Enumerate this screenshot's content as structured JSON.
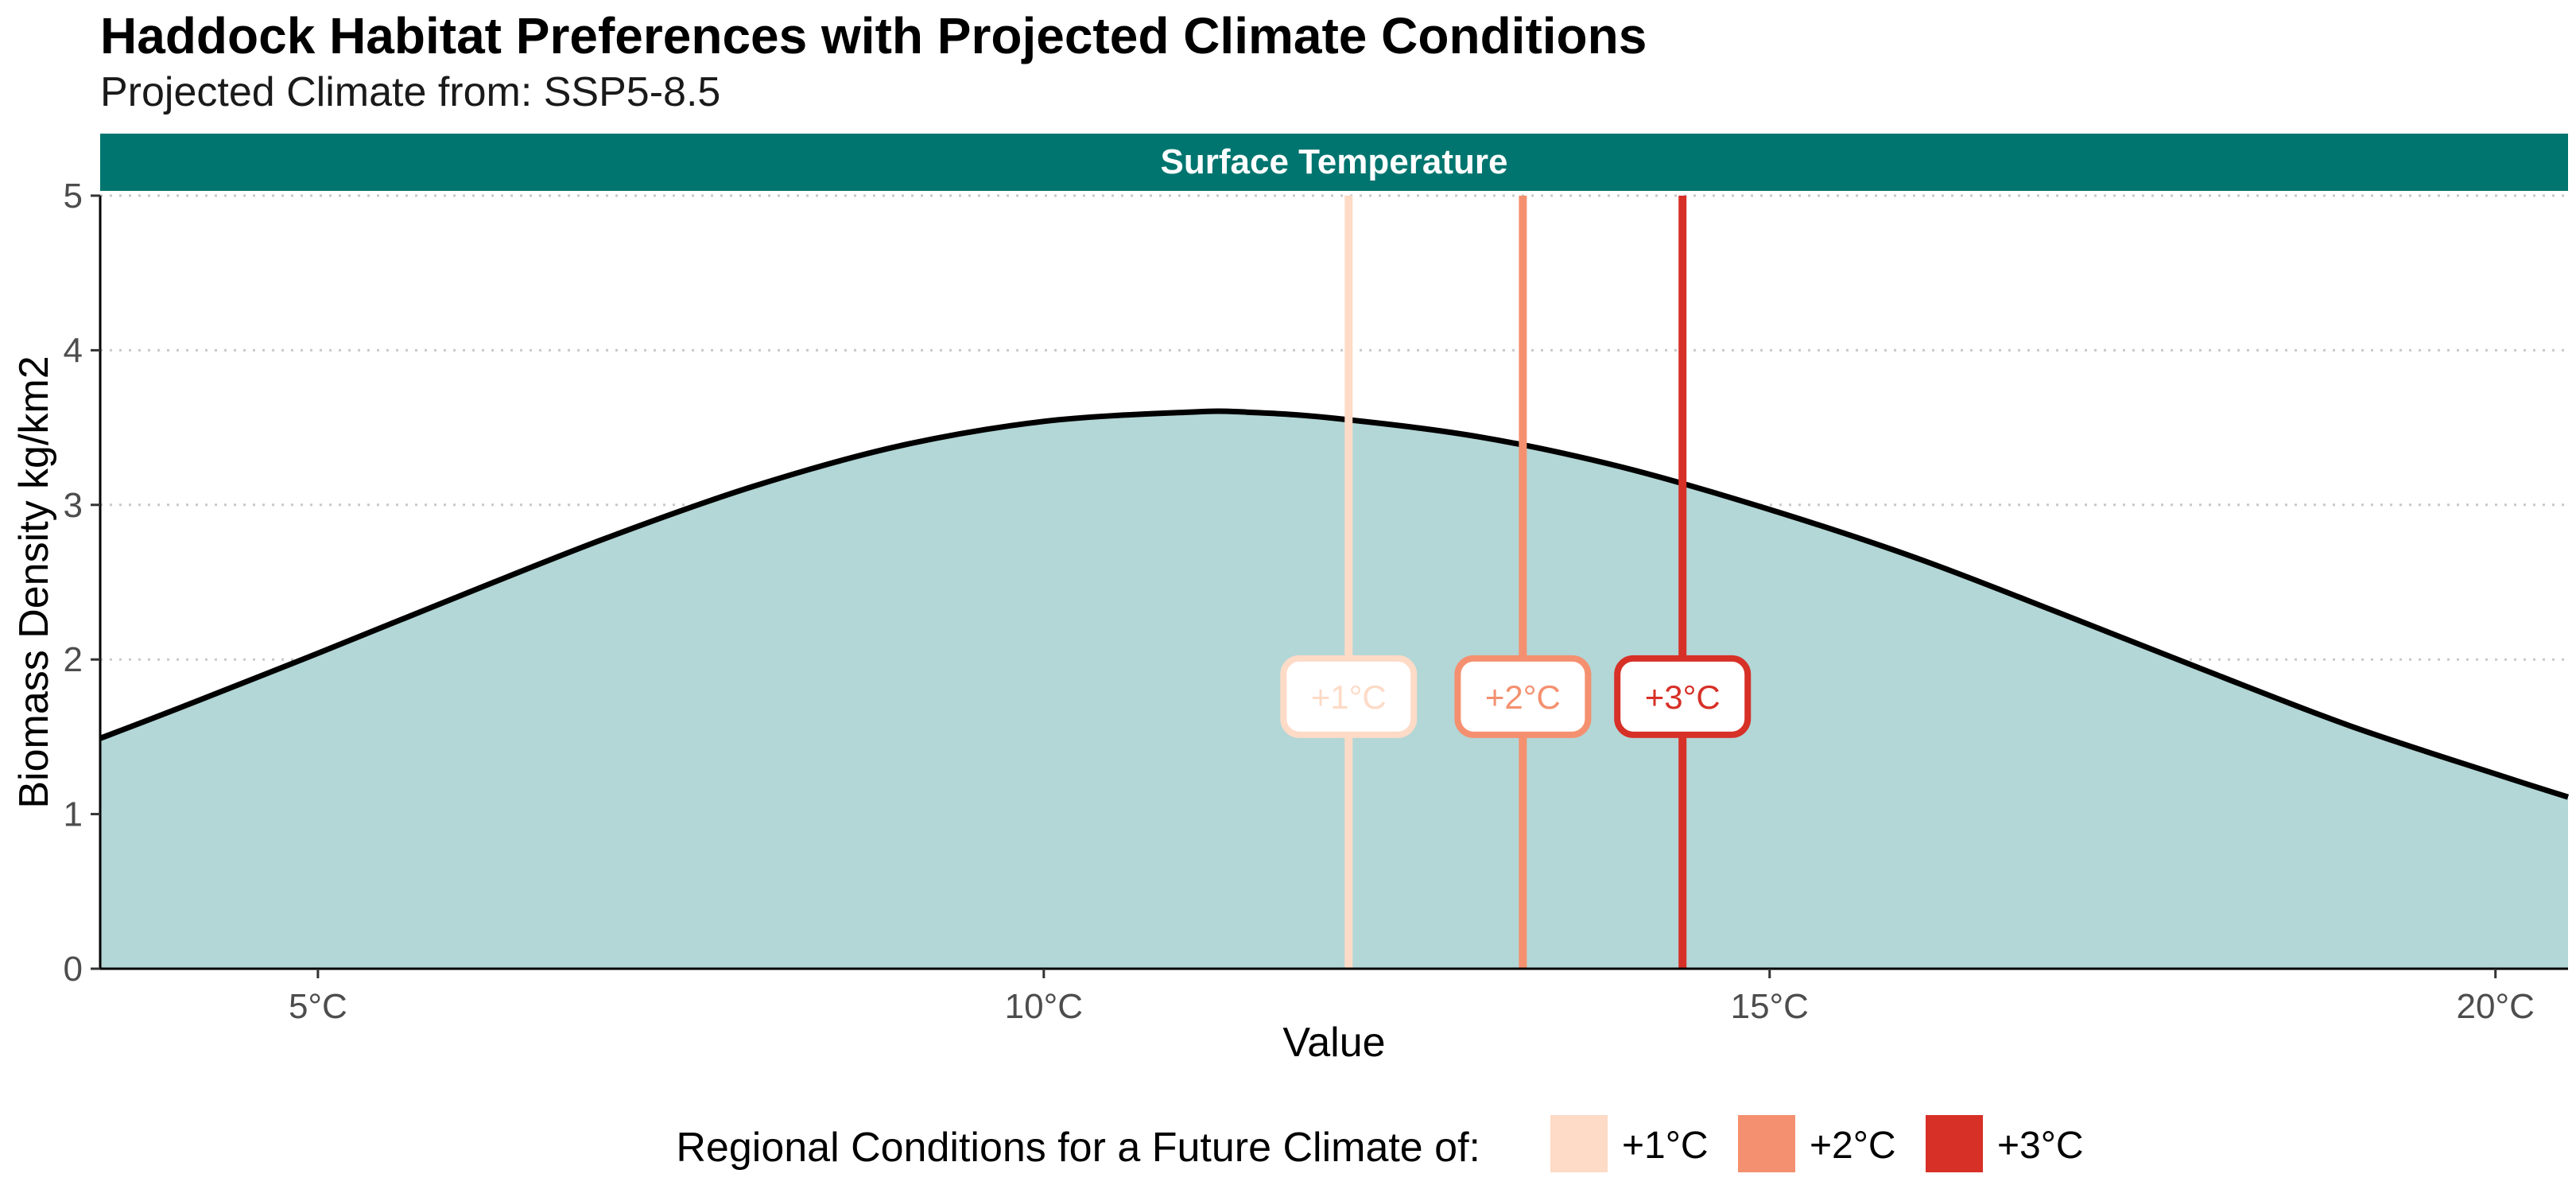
{
  "title": "Haddock Habitat Preferences with Projected Climate Conditions",
  "subtitle": "Projected Climate from: SSP5-8.5",
  "chart_data": {
    "type": "area",
    "panel_label": "Surface Temperature",
    "xlabel": "Value",
    "ylabel": "Biomass Density kg/km2",
    "xlim": [
      3.5,
      20.5
    ],
    "ylim": [
      0,
      5
    ],
    "x_ticks": [
      {
        "value": 5,
        "label": "5°C"
      },
      {
        "value": 10,
        "label": "10°C"
      },
      {
        "value": 15,
        "label": "15°C"
      },
      {
        "value": 20,
        "label": "20°C"
      }
    ],
    "y_ticks": [
      {
        "value": 0,
        "label": "0"
      },
      {
        "value": 1,
        "label": "1"
      },
      {
        "value": 2,
        "label": "2"
      },
      {
        "value": 3,
        "label": "3"
      },
      {
        "value": 4,
        "label": "4"
      },
      {
        "value": 5,
        "label": "5"
      }
    ],
    "grid": "horizontal dotted",
    "series": [
      {
        "x": [
          3.5,
          4.0,
          5.0,
          6.0,
          7.0,
          8.0,
          9.0,
          10.0,
          11.0,
          11.4,
          12.0,
          13.0,
          14.0,
          15.0,
          16.0,
          17.0,
          18.0,
          19.0,
          20.0,
          20.5
        ],
        "y": [
          1.49,
          1.67,
          2.04,
          2.42,
          2.79,
          3.12,
          3.38,
          3.54,
          3.6,
          3.6,
          3.56,
          3.44,
          3.24,
          2.97,
          2.66,
          2.3,
          1.93,
          1.57,
          1.26,
          1.11
        ]
      }
    ],
    "vlines": [
      {
        "x": 12.1,
        "label": "+1°C",
        "color": "#fddbc7"
      },
      {
        "x": 13.3,
        "label": "+2°C",
        "color": "#f4906f"
      },
      {
        "x": 14.4,
        "label": "+3°C",
        "color": "#d73027"
      }
    ],
    "vline_label_y": 1.76,
    "fill_color": "#b3d6d6",
    "strip_color": "#00756f",
    "legend": {
      "title": "Regional Conditions for a Future Climate of:",
      "position": "bottom",
      "items": [
        {
          "label": "+1°C",
          "color": "#fddbc7"
        },
        {
          "label": "+2°C",
          "color": "#f4906f"
        },
        {
          "label": "+3°C",
          "color": "#d73027"
        }
      ]
    }
  }
}
